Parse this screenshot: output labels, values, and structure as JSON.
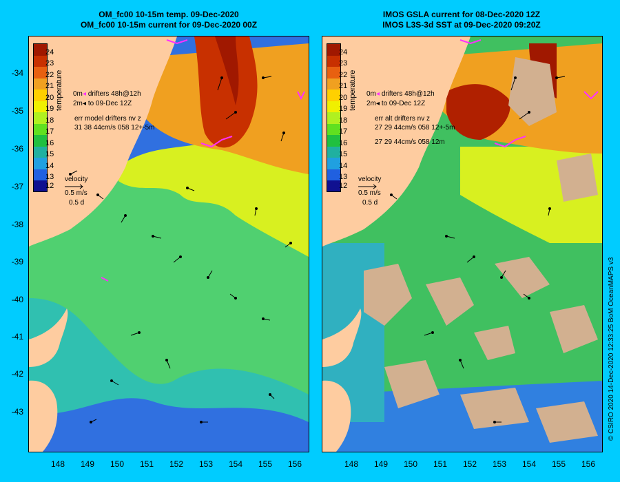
{
  "left_panel": {
    "title_line1": "OM_fc00 10-15m temp. 09-Dec-2020",
    "title_line2": "OM_fc00 10-15m current for 09-Dec-2020 00Z",
    "drifters_line1": "drifters 48h@12h",
    "drifters_line2": "to 09-Dec 12Z",
    "err_line1": "err model drifters nv z",
    "err_line2": "31 38 44cm/s 058 12+-5m"
  },
  "right_panel": {
    "title_line1": "IMOS GSLA current for 08-Dec-2020 12Z",
    "title_line2": "IMOS L3S-3d SST at 09-Dec-2020 09:20Z",
    "drifters_line1": "drifters 48h@12h",
    "drifters_line2": "to 09-Dec 12Z",
    "err_line1": "err alt drifters nv z",
    "err_line2": "27 29 44cm/s 058 12+-5m",
    "err_line3": "27 29 44cm/s 058 12m"
  },
  "colorbar": {
    "title": "temperature",
    "ticks": [
      "24",
      "23",
      "22",
      "21",
      "20",
      "19",
      "18",
      "17",
      "16",
      "15",
      "14",
      "13",
      "12"
    ],
    "colors": [
      "#a01800",
      "#c83000",
      "#e86010",
      "#f0a020",
      "#ffd000",
      "#f0f000",
      "#b0f020",
      "#60e020",
      "#20c040",
      "#20b0a0",
      "#20a0e0",
      "#2060e0",
      "#101090"
    ],
    "unit_labels": [
      "0m",
      "2m"
    ]
  },
  "velocity_key": {
    "label": "velocity",
    "speed": "0.5 m/s",
    "duration": "0.5 d"
  },
  "axes": {
    "lat_ticks": [
      "-34",
      "-35",
      "-36",
      "-37",
      "-38",
      "-39",
      "-40",
      "-41",
      "-42",
      "-43"
    ],
    "lon_ticks_left": [
      "148",
      "149",
      "150",
      "151",
      "152",
      "153",
      "154",
      "155",
      "156"
    ],
    "lon_ticks_right": [
      "148",
      "149",
      "150",
      "151",
      "152",
      "153",
      "154",
      "155",
      "156"
    ]
  },
  "colors": {
    "background": "#00ccff",
    "land": "#fecca0",
    "cloud_mask": "#d2b090",
    "drifter": "#ff30ff"
  },
  "credit": "© CSIRO 2020   14-Dec-2020 12:33:25 BoM OceanMAPS v3"
}
